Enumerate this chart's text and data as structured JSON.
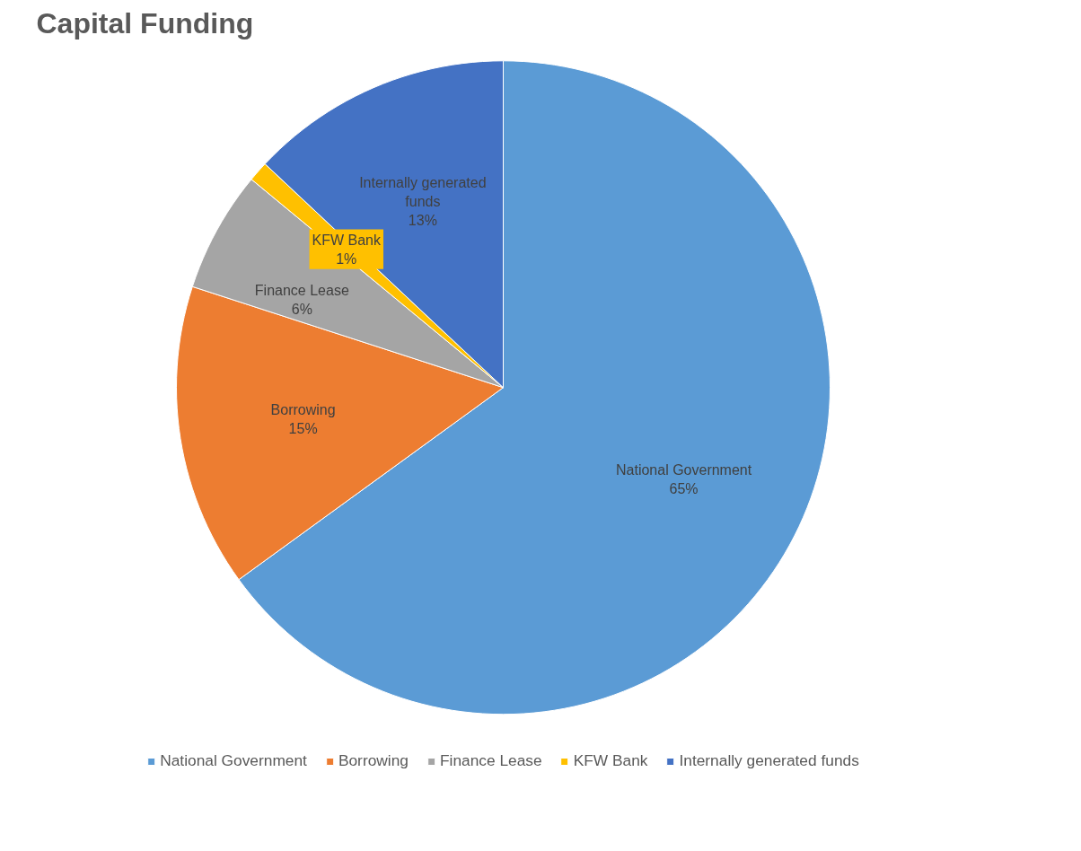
{
  "chart_data": {
    "type": "pie",
    "title": "Capital Funding",
    "categories": [
      "National Government",
      "Borrowing",
      "Finance Lease",
      "KFW Bank",
      "Internally generated funds"
    ],
    "values": [
      65,
      15,
      6,
      1,
      13
    ],
    "value_labels": [
      "65%",
      "15%",
      "6%",
      "1%",
      "13%"
    ],
    "colors": [
      "#5b9bd5",
      "#ed7d31",
      "#a5a5a5",
      "#ffc000",
      "#4472c4"
    ],
    "legend": "bottom"
  }
}
